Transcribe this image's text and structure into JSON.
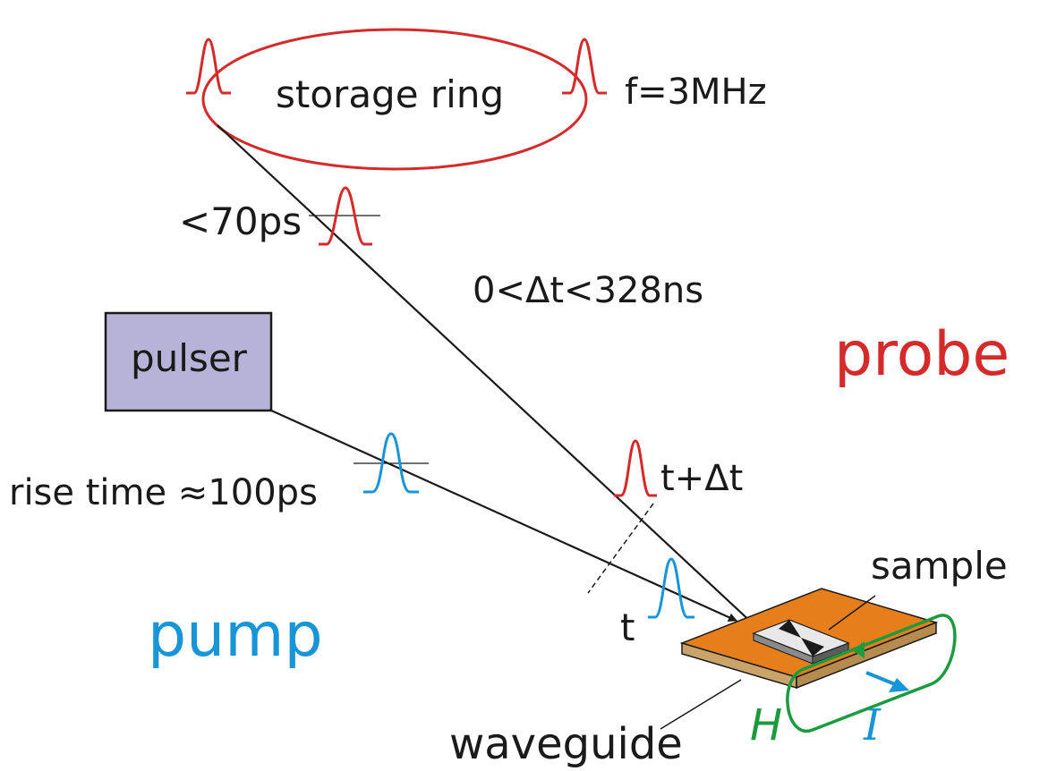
{
  "labels": {
    "storage_ring": "storage ring",
    "frequency": "f=3MHz",
    "bunch_length": "<70ps",
    "delay_range": "0<Δt<328ns",
    "pulser": "pulser",
    "probe": "probe",
    "rise_time": "rise time ≈100ps",
    "probe_time": "t+Δt",
    "pump_time": "t",
    "sample": "sample",
    "pump": "pump",
    "waveguide": "waveguide",
    "field": "H",
    "current": "I"
  },
  "colors": {
    "probe": "#d42a2a",
    "pump": "#1795d6",
    "field": "#1c9a3e",
    "pulser_fill": "#b6b2d8",
    "waveguide_top": "#e77e1c",
    "waveguide_edge": "#c9a46a",
    "line": "#1a1a1a"
  },
  "icons": {
    "probe_pulse": "gaussian-pulse-red",
    "pump_pulse": "gaussian-pulse-blue"
  }
}
